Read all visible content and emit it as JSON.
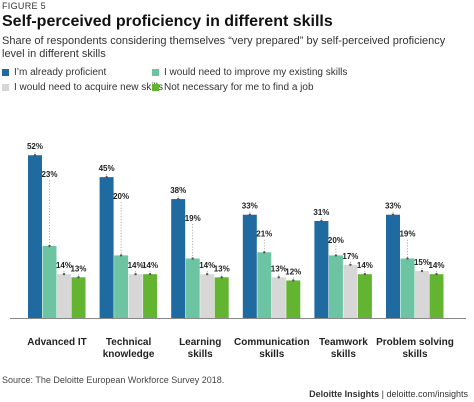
{
  "figure_label": "FIGURE 5",
  "title": "Self-perceived proficiency in different skills",
  "subtitle": "Share of respondents considering themselves “very prepared” by self-perceived proficiency level in different skills",
  "source": "Source: The Deloitte European Workforce Survey 2018.",
  "credit": {
    "brand": "Deloitte Insights",
    "separator": " | ",
    "url": "deloitte.com/insights"
  },
  "colors": {
    "proficient": "#1f6aa0",
    "improve": "#6cc4a2",
    "acquire": "#d7d7d7",
    "not_necessary": "#62b431",
    "axis": "#888888",
    "leader": "#9a9a9a"
  },
  "chart_data": {
    "type": "bar",
    "title": "Self-perceived proficiency in different skills",
    "xlabel": "",
    "ylabel": "",
    "ylim": [
      0,
      60
    ],
    "grid": false,
    "legend_position": "top",
    "categories": [
      [
        "Advanced IT"
      ],
      [
        "Technical",
        "knowledge"
      ],
      [
        "Learning",
        "skills"
      ],
      [
        "Communication",
        "skills"
      ],
      [
        "Teamwork",
        "skills"
      ],
      [
        "Problem solving",
        "skills"
      ]
    ],
    "series": [
      {
        "name": "I’m already proficient",
        "color": "#1f6aa0",
        "values": [
          52,
          45,
          38,
          33,
          31,
          33
        ]
      },
      {
        "name": "I would need to improve my existing skills",
        "color": "#6cc4a2",
        "values": [
          23,
          20,
          19,
          21,
          20,
          19
        ]
      },
      {
        "name": "I would need to acquire new skills",
        "color": "#d7d7d7",
        "values": [
          14,
          14,
          14,
          13,
          17,
          15
        ]
      },
      {
        "name": "Not necessary for me to find a job",
        "color": "#62b431",
        "values": [
          13,
          14,
          13,
          12,
          14,
          14
        ]
      }
    ]
  }
}
